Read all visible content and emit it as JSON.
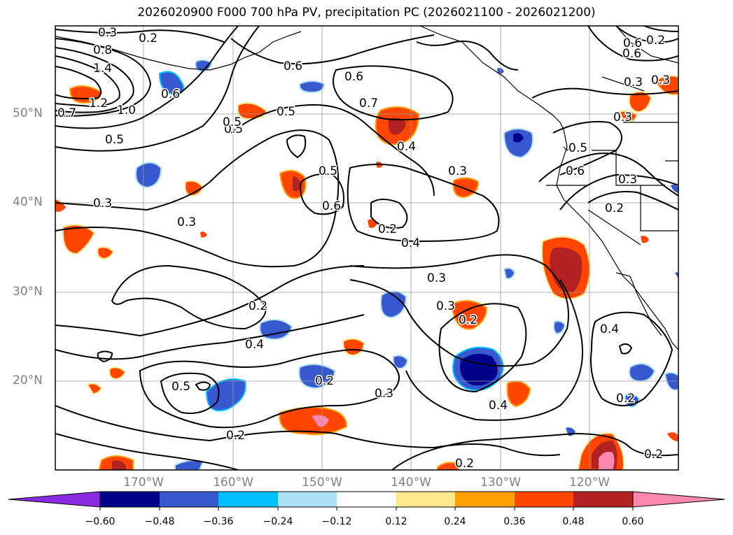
{
  "title": "2026020900 F000 700 hPa PV, precipitation PC (2026021100 - 2026021200)",
  "latitude_labels": [
    "50°N",
    "40°N",
    "30°N",
    "20°N"
  ],
  "longitude_labels": [
    "170°W",
    "160°W",
    "150°W",
    "140°W",
    "130°W",
    "120°W"
  ],
  "colorbar": {
    "tick_labels": [
      "−0.60",
      "−0.48",
      "−0.36",
      "−0.24",
      "−0.12",
      "0.12",
      "0.24",
      "0.36",
      "0.48",
      "0.60"
    ],
    "colors": [
      "#8a2be2",
      "#00008b",
      "#3858d0",
      "#00bfff",
      "#aee0f8",
      "#ffffff",
      "#fde88c",
      "#ffa000",
      "#ff4500",
      "#b22222",
      "#ff88b0"
    ]
  },
  "contour_labels": [
    "0.3",
    "0.2",
    "0.8",
    "1.4",
    "1.2",
    "1.0",
    "0.7",
    "0.6",
    "0.5",
    "0.5",
    "0.6",
    "0.5",
    "0.7",
    "0.6",
    "0.4",
    "0.5",
    "0.3",
    "0.6",
    "0.2",
    "0.4",
    "0.3",
    "0.3",
    "0.3",
    "0.2",
    "0.4",
    "0.5",
    "0.2",
    "0.2",
    "0.3",
    "0.3",
    "0.4",
    "0.2",
    "0.2",
    "0.4",
    "0.5",
    "0.6",
    "0.3",
    "0.2",
    "0.3",
    "0.6",
    "0.2",
    "0.6",
    "0.3",
    "0.5",
    "0.3",
    "0.2",
    "0.2"
  ]
}
